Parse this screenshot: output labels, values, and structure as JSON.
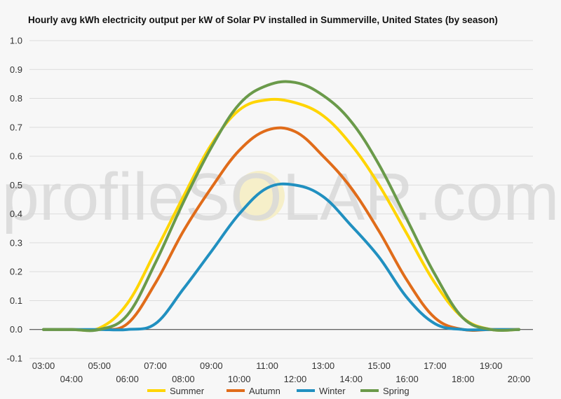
{
  "chart_data": {
    "type": "line",
    "title": "Hourly avg kWh electricity output per kW of Solar PV installed in Summerville, United States (by season)",
    "xlabel": "",
    "ylabel": "",
    "ylim": [
      -0.1,
      1.0
    ],
    "yticks": [
      "-0.1",
      "0.0",
      "0.1",
      "0.2",
      "0.3",
      "0.4",
      "0.5",
      "0.6",
      "0.7",
      "0.8",
      "0.9",
      "1.0"
    ],
    "categories": [
      "03:00",
      "04:00",
      "05:00",
      "06:00",
      "07:00",
      "08:00",
      "09:00",
      "10:00",
      "11:00",
      "12:00",
      "13:00",
      "14:00",
      "15:00",
      "16:00",
      "17:00",
      "18:00",
      "19:00",
      "20:00"
    ],
    "series": [
      {
        "name": "Summer",
        "color": "#ffd500",
        "values": [
          0.0,
          0.0,
          0.005,
          0.09,
          0.27,
          0.46,
          0.64,
          0.76,
          0.795,
          0.785,
          0.74,
          0.64,
          0.5,
          0.33,
          0.16,
          0.04,
          0.0,
          0.0
        ]
      },
      {
        "name": "Autumn",
        "color": "#e06c1a",
        "values": [
          0.0,
          0.0,
          0.0,
          0.02,
          0.16,
          0.34,
          0.49,
          0.62,
          0.69,
          0.685,
          0.6,
          0.49,
          0.34,
          0.17,
          0.04,
          0.0,
          0.0,
          0.0
        ]
      },
      {
        "name": "Winter",
        "color": "#2190c0",
        "values": [
          0.0,
          0.0,
          0.0,
          0.0,
          0.02,
          0.14,
          0.27,
          0.4,
          0.49,
          0.5,
          0.46,
          0.36,
          0.25,
          0.11,
          0.02,
          0.0,
          0.0,
          0.0
        ]
      },
      {
        "name": "Spring",
        "color": "#6a9a4a",
        "values": [
          0.0,
          0.0,
          0.0,
          0.05,
          0.23,
          0.44,
          0.63,
          0.78,
          0.845,
          0.855,
          0.81,
          0.72,
          0.57,
          0.38,
          0.19,
          0.04,
          0.0,
          0.0
        ]
      }
    ],
    "legend_position": "bottom",
    "grid": true,
    "watermark": "profileSOLAR.com"
  }
}
